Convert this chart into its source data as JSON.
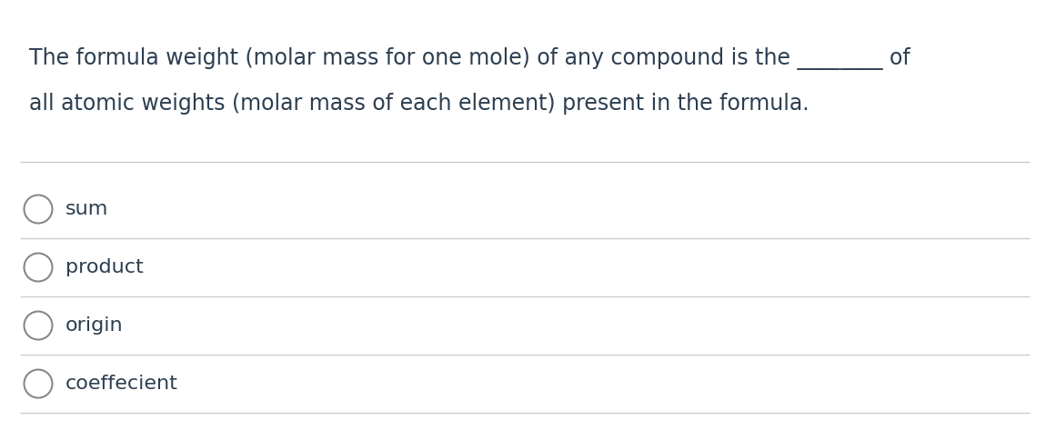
{
  "background_color": "#ffffff",
  "question_line1": "The formula weight (molar mass for one mole) of any compound is the ________ of",
  "question_line2": "all atomic weights (molar mass of each element) present in the formula.",
  "options": [
    "sum",
    "product",
    "origin",
    "coeffecient"
  ],
  "text_color": "#2c3e50",
  "line_color": "#cccccc",
  "font_size_question": 17,
  "font_size_options": 16,
  "circle_color": "#888888",
  "fig_width": 11.5,
  "fig_height": 4.74
}
